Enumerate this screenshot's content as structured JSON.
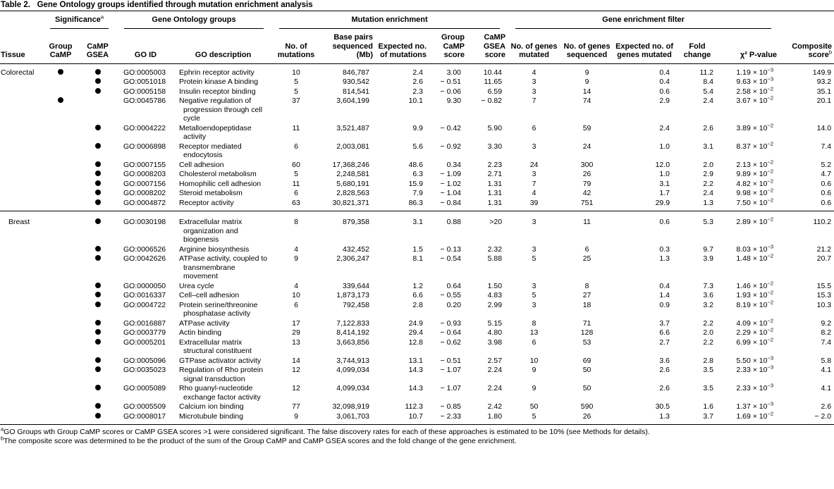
{
  "title": {
    "label": "Table 2.",
    "text": "Gene Ontology groups identified through mutation enrichment analysis"
  },
  "header": {
    "groups": [
      {
        "text": "Significance",
        "note": "a"
      },
      {
        "text": "Gene Ontology groups"
      },
      {
        "text": "Mutation enrichment"
      },
      {
        "text": "Gene enrichment filter"
      }
    ],
    "columns": [
      {
        "text": "Tissue"
      },
      {
        "text": "Group CaMP"
      },
      {
        "text": "CaMP GSEA"
      },
      {
        "text": "GO ID"
      },
      {
        "text": "GO description"
      },
      {
        "text": "No. of mutations"
      },
      {
        "text": "Base pairs sequenced (Mb)"
      },
      {
        "text": "Expected no. of mutations"
      },
      {
        "text": "Group CaMP score"
      },
      {
        "text": "CaMP GSEA score"
      },
      {
        "text": "No. of genes mutated"
      },
      {
        "text": "No. of genes sequenced"
      },
      {
        "text": "Expected no. of genes mutated"
      },
      {
        "text": "Fold change"
      },
      {
        "text": "χ² P-value"
      },
      {
        "text": "Composite score",
        "note": "b"
      }
    ]
  },
  "table": {
    "groups": [
      {
        "tissue": "Colorectal",
        "rows": [
          {
            "sig_group": true,
            "sig_gsea": true,
            "go_id": "GO:0005003",
            "description": "Ephrin receptor activity",
            "mutations": "10",
            "base_pairs": "846,787",
            "expected_mutations": "2.4",
            "group_camp_score": "3.00",
            "camp_gsea_score": "10.44",
            "genes_mutated": "4",
            "genes_sequenced": "9",
            "expected_genes": "0.4",
            "fold_change": "11.2",
            "p_value": {
              "base": "1.19 × 10",
              "exp": "−3"
            },
            "composite_score": "149.9"
          },
          {
            "sig_group": false,
            "sig_gsea": true,
            "go_id": "GO:0051018",
            "description": "Protein kinase A binding",
            "mutations": "5",
            "base_pairs": "930,542",
            "expected_mutations": "2.6",
            "group_camp_score": "− 0.51",
            "camp_gsea_score": "11.65",
            "genes_mutated": "3",
            "genes_sequenced": "9",
            "expected_genes": "0.4",
            "fold_change": "8.4",
            "p_value": {
              "base": "9.63 × 10",
              "exp": "−3"
            },
            "composite_score": "93.2"
          },
          {
            "sig_group": false,
            "sig_gsea": true,
            "go_id": "GO:0005158",
            "description": "Insulin receptor binding",
            "mutations": "5",
            "base_pairs": "814,541",
            "expected_mutations": "2.3",
            "group_camp_score": "− 0.06",
            "camp_gsea_score": "6.59",
            "genes_mutated": "3",
            "genes_sequenced": "14",
            "expected_genes": "0.6",
            "fold_change": "5.4",
            "p_value": {
              "base": "2.58 × 10",
              "exp": "−2"
            },
            "composite_score": "35.1"
          },
          {
            "sig_group": true,
            "sig_gsea": false,
            "go_id": "GO:0045786",
            "description": "Negative regulation of progression through cell cycle",
            "mutations": "37",
            "base_pairs": "3,604,199",
            "expected_mutations": "10.1",
            "group_camp_score": "9.30",
            "camp_gsea_score": "− 0.82",
            "genes_mutated": "7",
            "genes_sequenced": "74",
            "expected_genes": "2.9",
            "fold_change": "2.4",
            "p_value": {
              "base": "3.67 × 10",
              "exp": "−2"
            },
            "composite_score": "20.1"
          },
          {
            "sig_group": false,
            "sig_gsea": true,
            "go_id": "GO:0004222",
            "description": "Metalloendopeptidase activity",
            "mutations": "11",
            "base_pairs": "3,521,487",
            "expected_mutations": "9.9",
            "group_camp_score": "− 0.42",
            "camp_gsea_score": "5.90",
            "genes_mutated": "6",
            "genes_sequenced": "59",
            "expected_genes": "2.4",
            "fold_change": "2.6",
            "p_value": {
              "base": "3.89 × 10",
              "exp": "−2"
            },
            "composite_score": "14.0"
          },
          {
            "sig_group": false,
            "sig_gsea": true,
            "go_id": "GO:0006898",
            "description": "Receptor mediated endocytosis",
            "mutations": "6",
            "base_pairs": "2,003,081",
            "expected_mutations": "5.6",
            "group_camp_score": "− 0.92",
            "camp_gsea_score": "3.30",
            "genes_mutated": "3",
            "genes_sequenced": "24",
            "expected_genes": "1.0",
            "fold_change": "3.1",
            "p_value": {
              "base": "8.37 × 10",
              "exp": "−2"
            },
            "composite_score": "7.4"
          },
          {
            "sig_group": false,
            "sig_gsea": true,
            "go_id": "GO:0007155",
            "description": "Cell adhesion",
            "mutations": "60",
            "base_pairs": "17,368,246",
            "expected_mutations": "48.6",
            "group_camp_score": "0.34",
            "camp_gsea_score": "2.23",
            "genes_mutated": "24",
            "genes_sequenced": "300",
            "expected_genes": "12.0",
            "fold_change": "2.0",
            "p_value": {
              "base": "2.13 × 10",
              "exp": "−2"
            },
            "composite_score": "5.2"
          },
          {
            "sig_group": false,
            "sig_gsea": true,
            "go_id": "GO:0008203",
            "description": "Cholesterol metabolism",
            "mutations": "5",
            "base_pairs": "2,248,581",
            "expected_mutations": "6.3",
            "group_camp_score": "− 1.09",
            "camp_gsea_score": "2.71",
            "genes_mutated": "3",
            "genes_sequenced": "26",
            "expected_genes": "1.0",
            "fold_change": "2.9",
            "p_value": {
              "base": "9.89 × 10",
              "exp": "−2"
            },
            "composite_score": "4.7"
          },
          {
            "sig_group": false,
            "sig_gsea": true,
            "go_id": "GO:0007156",
            "description": "Homophilic cell adhesion",
            "mutations": "11",
            "base_pairs": "5,680,191",
            "expected_mutations": "15.9",
            "group_camp_score": "− 1.02",
            "camp_gsea_score": "1.31",
            "genes_mutated": "7",
            "genes_sequenced": "79",
            "expected_genes": "3.1",
            "fold_change": "2.2",
            "p_value": {
              "base": "4.82 × 10",
              "exp": "−2"
            },
            "composite_score": "0.6"
          },
          {
            "sig_group": false,
            "sig_gsea": true,
            "go_id": "GO:0008202",
            "description": "Steroid metabolism",
            "mutations": "6",
            "base_pairs": "2,828,563",
            "expected_mutations": "7.9",
            "group_camp_score": "− 1.04",
            "camp_gsea_score": "1.31",
            "genes_mutated": "4",
            "genes_sequenced": "42",
            "expected_genes": "1.7",
            "fold_change": "2.4",
            "p_value": {
              "base": "9.98 × 10",
              "exp": "−2"
            },
            "composite_score": "0.6"
          },
          {
            "sig_group": false,
            "sig_gsea": true,
            "go_id": "GO:0004872",
            "description": "Receptor activity",
            "mutations": "63",
            "base_pairs": "30,821,371",
            "expected_mutations": "86.3",
            "group_camp_score": "− 0.84",
            "camp_gsea_score": "1.31",
            "genes_mutated": "39",
            "genes_sequenced": "751",
            "expected_genes": "29.9",
            "fold_change": "1.3",
            "p_value": {
              "base": "7.50 × 10",
              "exp": "−2"
            },
            "composite_score": "0.6"
          }
        ]
      },
      {
        "tissue": "Breast",
        "rows": [
          {
            "sig_group": false,
            "sig_gsea": true,
            "go_id": "GO:0030198",
            "description": "Extracellular matrix organization and biogenesis",
            "mutations": "8",
            "base_pairs": "879,358",
            "expected_mutations": "3.1",
            "group_camp_score": "0.88",
            "camp_gsea_score": ">20",
            "genes_mutated": "3",
            "genes_sequenced": "11",
            "expected_genes": "0.6",
            "fold_change": "5.3",
            "p_value": {
              "base": "2.89 × 10",
              "exp": "−2"
            },
            "composite_score": "110.2"
          },
          {
            "sig_group": false,
            "sig_gsea": true,
            "go_id": "GO:0006526",
            "description": "Arginine biosynthesis",
            "mutations": "4",
            "base_pairs": "432,452",
            "expected_mutations": "1.5",
            "group_camp_score": "− 0.13",
            "camp_gsea_score": "2.32",
            "genes_mutated": "3",
            "genes_sequenced": "6",
            "expected_genes": "0.3",
            "fold_change": "9.7",
            "p_value": {
              "base": "8.03 × 10",
              "exp": "−3"
            },
            "composite_score": "21.2"
          },
          {
            "sig_group": false,
            "sig_gsea": true,
            "go_id": "GO:0042626",
            "description": "ATPase activity, coupled to transmembrane movement",
            "mutations": "9",
            "base_pairs": "2,306,247",
            "expected_mutations": "8.1",
            "group_camp_score": "− 0.54",
            "camp_gsea_score": "5.88",
            "genes_mutated": "5",
            "genes_sequenced": "25",
            "expected_genes": "1.3",
            "fold_change": "3.9",
            "p_value": {
              "base": "1.48 × 10",
              "exp": "−2"
            },
            "composite_score": "20.7"
          },
          {
            "sig_group": false,
            "sig_gsea": true,
            "go_id": "GO:0000050",
            "description": "Urea cycle",
            "mutations": "4",
            "base_pairs": "339,644",
            "expected_mutations": "1.2",
            "group_camp_score": "0.64",
            "camp_gsea_score": "1.50",
            "genes_mutated": "3",
            "genes_sequenced": "8",
            "expected_genes": "0.4",
            "fold_change": "7.3",
            "p_value": {
              "base": "1.46 × 10",
              "exp": "−2"
            },
            "composite_score": "15.5"
          },
          {
            "sig_group": false,
            "sig_gsea": true,
            "go_id": "GO:0016337",
            "description": "Cell–cell adhesion",
            "mutations": "10",
            "base_pairs": "1,873,173",
            "expected_mutations": "6.6",
            "group_camp_score": "− 0.55",
            "camp_gsea_score": "4.83",
            "genes_mutated": "5",
            "genes_sequenced": "27",
            "expected_genes": "1.4",
            "fold_change": "3.6",
            "p_value": {
              "base": "1.93 × 10",
              "exp": "−2"
            },
            "composite_score": "15.3"
          },
          {
            "sig_group": false,
            "sig_gsea": true,
            "go_id": "GO:0004722",
            "description": "Protein serine/threonine phosphatase activity",
            "mutations": "6",
            "base_pairs": "792,458",
            "expected_mutations": "2.8",
            "group_camp_score": "0.20",
            "camp_gsea_score": "2.99",
            "genes_mutated": "3",
            "genes_sequenced": "18",
            "expected_genes": "0.9",
            "fold_change": "3.2",
            "p_value": {
              "base": "8.19 × 10",
              "exp": "−2"
            },
            "composite_score": "10.3"
          },
          {
            "sig_group": false,
            "sig_gsea": true,
            "go_id": "GO:0016887",
            "description": "ATPase activity",
            "mutations": "17",
            "base_pairs": "7,122,833",
            "expected_mutations": "24.9",
            "group_camp_score": "− 0.93",
            "camp_gsea_score": "5.15",
            "genes_mutated": "8",
            "genes_sequenced": "71",
            "expected_genes": "3.7",
            "fold_change": "2.2",
            "p_value": {
              "base": "4.09 × 10",
              "exp": "−2"
            },
            "composite_score": "9.2"
          },
          {
            "sig_group": false,
            "sig_gsea": true,
            "go_id": "GO:0003779",
            "description": "Actin binding",
            "mutations": "29",
            "base_pairs": "8,414,192",
            "expected_mutations": "29.4",
            "group_camp_score": "− 0.64",
            "camp_gsea_score": "4.80",
            "genes_mutated": "13",
            "genes_sequenced": "128",
            "expected_genes": "6.6",
            "fold_change": "2.0",
            "p_value": {
              "base": "2.29 × 10",
              "exp": "−2"
            },
            "composite_score": "8.2"
          },
          {
            "sig_group": false,
            "sig_gsea": true,
            "go_id": "GO:0005201",
            "description": "Extracellular matrix structural constituent",
            "mutations": "13",
            "base_pairs": "3,663,856",
            "expected_mutations": "12.8",
            "group_camp_score": "− 0.62",
            "camp_gsea_score": "3.98",
            "genes_mutated": "6",
            "genes_sequenced": "53",
            "expected_genes": "2.7",
            "fold_change": "2.2",
            "p_value": {
              "base": "6.99 × 10",
              "exp": "−2"
            },
            "composite_score": "7.4"
          },
          {
            "sig_group": false,
            "sig_gsea": true,
            "go_id": "GO:0005096",
            "description": "GTPase activator activity",
            "mutations": "14",
            "base_pairs": "3,744,913",
            "expected_mutations": "13.1",
            "group_camp_score": "− 0.51",
            "camp_gsea_score": "2.57",
            "genes_mutated": "10",
            "genes_sequenced": "69",
            "expected_genes": "3.6",
            "fold_change": "2.8",
            "p_value": {
              "base": "5.50 × 10",
              "exp": "−3"
            },
            "composite_score": "5.8"
          },
          {
            "sig_group": false,
            "sig_gsea": true,
            "go_id": "GO:0035023",
            "description": "Regulation of Rho protein signal transduction",
            "mutations": "12",
            "base_pairs": "4,099,034",
            "expected_mutations": "14.3",
            "group_camp_score": "− 1.07",
            "camp_gsea_score": "2.24",
            "genes_mutated": "9",
            "genes_sequenced": "50",
            "expected_genes": "2.6",
            "fold_change": "3.5",
            "p_value": {
              "base": "2.33 × 10",
              "exp": "−3"
            },
            "composite_score": "4.1"
          },
          {
            "sig_group": false,
            "sig_gsea": true,
            "go_id": "GO:0005089",
            "description": "Rho guanyl-nucleotide exchange factor activity",
            "mutations": "12",
            "base_pairs": "4,099,034",
            "expected_mutations": "14.3",
            "group_camp_score": "− 1.07",
            "camp_gsea_score": "2.24",
            "genes_mutated": "9",
            "genes_sequenced": "50",
            "expected_genes": "2.6",
            "fold_change": "3.5",
            "p_value": {
              "base": "2.33 × 10",
              "exp": "−3"
            },
            "composite_score": "4.1"
          },
          {
            "sig_group": false,
            "sig_gsea": true,
            "go_id": "GO:0005509",
            "description": "Calcium ion binding",
            "mutations": "77",
            "base_pairs": "32,098,919",
            "expected_mutations": "112.3",
            "group_camp_score": "− 0.85",
            "camp_gsea_score": "2.42",
            "genes_mutated": "50",
            "genes_sequenced": "590",
            "expected_genes": "30.5",
            "fold_change": "1.6",
            "p_value": {
              "base": "1.37 × 10",
              "exp": "−3"
            },
            "composite_score": "2.6"
          },
          {
            "sig_group": false,
            "sig_gsea": true,
            "go_id": "GO:0008017",
            "description": "Microtubule binding",
            "mutations": "9",
            "base_pairs": "3,061,703",
            "expected_mutations": "10.7",
            "group_camp_score": "− 2.33",
            "camp_gsea_score": "1.80",
            "genes_mutated": "5",
            "genes_sequenced": "26",
            "expected_genes": "1.3",
            "fold_change": "3.7",
            "p_value": {
              "base": "1.69 × 10",
              "exp": "−2"
            },
            "composite_score": "− 2.0"
          }
        ]
      }
    ]
  },
  "footnotes": [
    {
      "mark": "a",
      "text": "GO Groups wth Group CaMP scores or CaMP GSEA scores >1 were considered significant. The false discovery rates for each of these approaches is estimated to be 10% (see Methods for details)."
    },
    {
      "mark": "b",
      "text": "The composite score was determined to be the product of the sum of the Group CaMP and CaMP GSEA scores and the fold change of the gene enrichment."
    }
  ]
}
